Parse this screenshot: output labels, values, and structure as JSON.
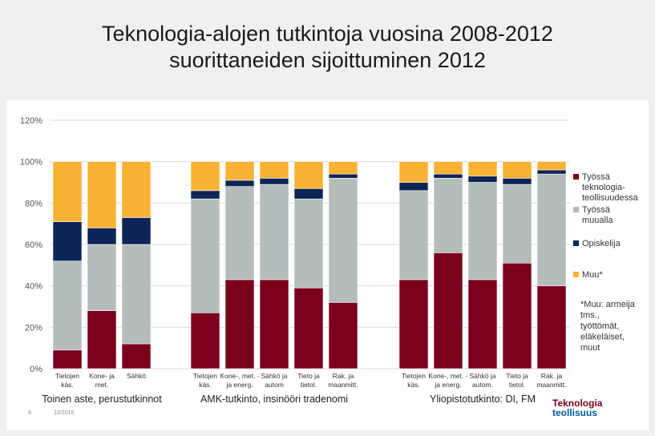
{
  "title_line1": "Teknologia-alojen tutkintoja vuosina 2008-2012",
  "title_line2": "suorittaneiden sijoittuminen 2012",
  "footer": {
    "page_number": "6",
    "date": "12/2015"
  },
  "logo": {
    "line1": "Teknologia",
    "line2": "teollisuus"
  },
  "colors": {
    "tyossa_teknologia": "#7a001c",
    "tyossa_muualla": "#b4bcbc",
    "opiskelija": "#0d2456",
    "muu": "#f9b233",
    "grid": "#d9d9d9"
  },
  "chart_data": {
    "type": "bar",
    "stacked": true,
    "ylim": [
      0,
      120
    ],
    "yticks": [
      "0%",
      "20%",
      "40%",
      "60%",
      "80%",
      "100%",
      "120%"
    ],
    "grid": true,
    "legend_position": "right",
    "series": [
      {
        "name": "Työssä teknologia-teollisuudessa",
        "key": "tyossa_teknologia"
      },
      {
        "name": "Työssä muualla",
        "key": "tyossa_muualla"
      },
      {
        "name": "Opiskelija",
        "key": "opiskelija"
      },
      {
        "name": "Muu*",
        "key": "muu"
      }
    ],
    "legend_note": "*Muu: armeija tms., työttömät, eläkeläiset, muut",
    "groups": [
      {
        "label": "Toinen aste, perustutkinnot",
        "bars": [
          {
            "label": "Tietojen käs.",
            "values": [
              9,
              43,
              19,
              29
            ]
          },
          {
            "label": "Kone- ja met.",
            "values": [
              28,
              32,
              8,
              32
            ]
          },
          {
            "label": "Sähkö",
            "values": [
              12,
              48,
              13,
              27
            ]
          }
        ]
      },
      {
        "label": "AMK-tutkinto, insinööri tradenomi",
        "bars": [
          {
            "label": "Tietojen käs.",
            "values": [
              27,
              55,
              4,
              14
            ]
          },
          {
            "label": "Kone-, met. - ja energ.",
            "values": [
              43,
              45,
              3,
              9
            ]
          },
          {
            "label": "Sähkö ja autom",
            "values": [
              43,
              46,
              3,
              8
            ]
          },
          {
            "label": "Tieto ja tietol.",
            "values": [
              39,
              43,
              5,
              13
            ]
          },
          {
            "label": "Rak. ja maanmitt.",
            "values": [
              32,
              60,
              2,
              6
            ]
          }
        ]
      },
      {
        "label": "Yliopistotutkinto: DI, FM",
        "bars": [
          {
            "label": "Tietojen käs.",
            "values": [
              43,
              43,
              4,
              10
            ]
          },
          {
            "label": "Kone-, met. - ja energ.",
            "values": [
              56,
              36,
              2,
              6
            ]
          },
          {
            "label": "Sähkö ja autom.",
            "values": [
              43,
              47,
              3,
              7
            ]
          },
          {
            "label": "Tieto ja tietol.",
            "values": [
              51,
              38,
              3,
              8
            ]
          },
          {
            "label": "Rak. ja maanmitt.",
            "values": [
              40,
              54,
              2,
              4
            ]
          }
        ]
      }
    ]
  }
}
